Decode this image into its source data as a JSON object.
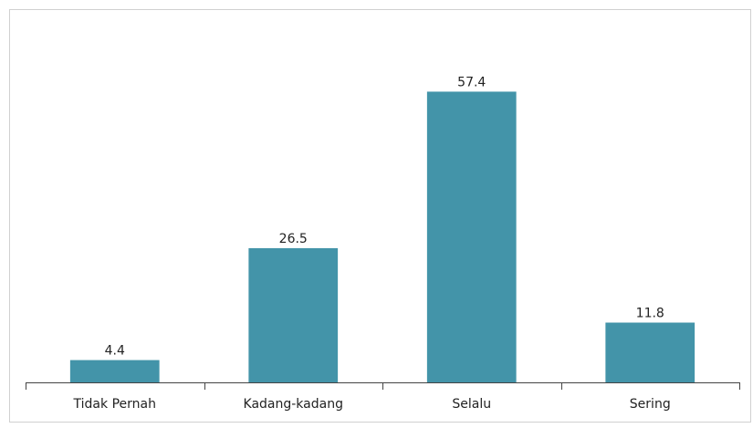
{
  "chart_data": {
    "type": "bar",
    "categories": [
      "Tidak Pernah",
      "Kadang-kadang",
      "Selalu",
      "Sering"
    ],
    "values": [
      4.4,
      26.5,
      57.4,
      11.8
    ],
    "color": "#4394a9",
    "ylim": [
      0,
      60
    ]
  }
}
